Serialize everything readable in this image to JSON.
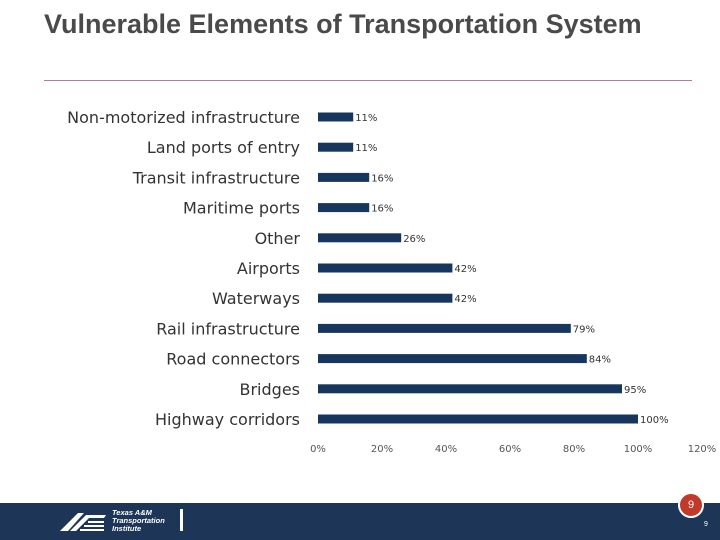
{
  "slide": {
    "title": "Vulnerable Elements of Transportation System",
    "page_number": "9",
    "page_number_small": "9",
    "logo_lines": [
      "Texas A&M",
      "Transportation",
      "Institute"
    ]
  },
  "colors": {
    "bar": "#17365d",
    "accent_rule": "#b07aa1",
    "footer": "#1d3557",
    "badge": "#c0392b"
  },
  "chart_data": {
    "type": "bar",
    "orientation": "horizontal",
    "title": "",
    "categories": [
      "Non-motorized infrastructure",
      "Land ports of entry",
      "Transit infrastructure",
      "Maritime ports",
      "Other",
      "Airports",
      "Waterways",
      "Rail infrastructure",
      "Road connectors",
      "Bridges",
      "Highway corridors"
    ],
    "values": [
      11,
      11,
      16,
      16,
      26,
      42,
      42,
      79,
      84,
      95,
      100
    ],
    "value_labels": [
      "11%",
      "11%",
      "16%",
      "16%",
      "26%",
      "42%",
      "42%",
      "79%",
      "84%",
      "95%",
      "100%"
    ],
    "xlim": [
      0,
      120
    ],
    "xticks": [
      0,
      20,
      40,
      60,
      80,
      100,
      120
    ],
    "xtick_labels": [
      "0%",
      "20%",
      "40%",
      "60%",
      "80%",
      "100%",
      "120%"
    ],
    "xlabel": "",
    "ylabel": "",
    "grid": false
  }
}
